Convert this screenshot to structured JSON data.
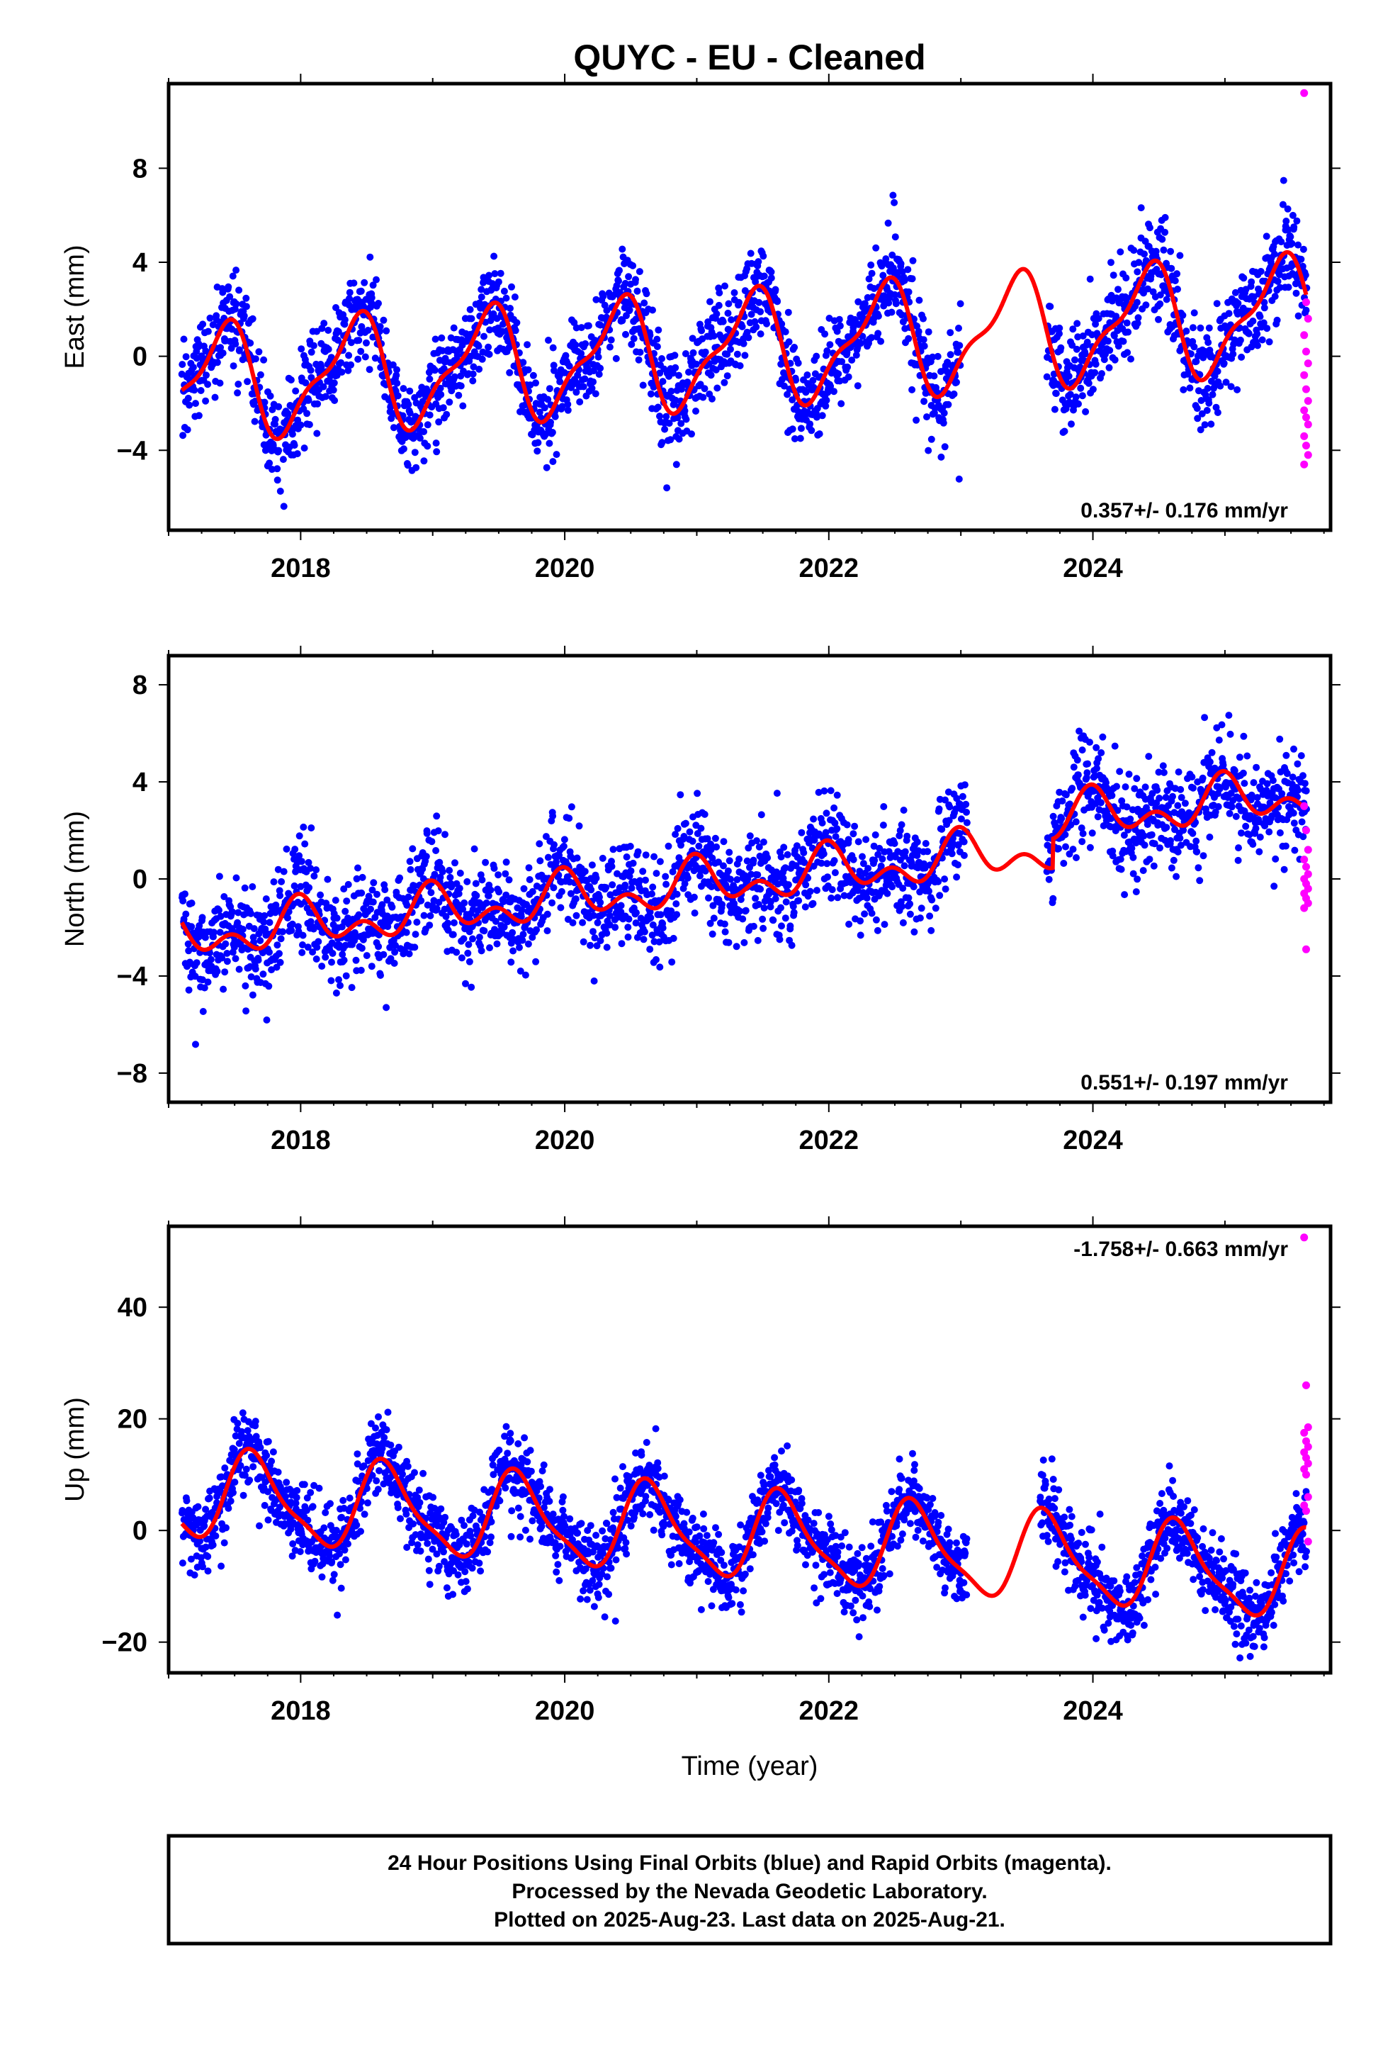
{
  "title": "QUYC  - EU - Cleaned",
  "xlabel": "Time (year)",
  "footer": {
    "lines": [
      "24 Hour Positions Using Final Orbits (blue) and Rapid Orbits (magenta).",
      "Processed by the Nevada Geodetic Laboratory.",
      "Plotted on 2025-Aug-23. Last data on 2025-Aug-21."
    ]
  },
  "colors": {
    "final_orbits": "#0000ff",
    "rapid_orbits": "#ff00ff",
    "model": "#ff0000",
    "frame": "#000000"
  },
  "chart_data": [
    {
      "type": "scatter",
      "ylabel": "East (mm)",
      "rate": "0.357+/- 0.176 mm/yr",
      "rate_position": "bottom-right",
      "xlim": [
        2017.0,
        2025.8
      ],
      "ylim": [
        -7.4,
        11.6
      ],
      "xticks": [
        2018,
        2020,
        2022,
        2024
      ],
      "yticks": [
        -4,
        0,
        4,
        8
      ],
      "gaps": [
        [
          2023.0,
          2023.65
        ]
      ],
      "model": {
        "start": 2017.1,
        "end": 2025.62,
        "offset": -1.2,
        "trend": 0.357,
        "annual_amp": 2.2,
        "annual_peak": 2017.4,
        "semi_amp": 0.8,
        "semi_peak": 2017.52
      },
      "scatter_sd": 1.0,
      "final_points": 2500,
      "rapid": [
        11.2,
        2.3,
        1.6,
        0.9,
        0.2,
        -0.3,
        -0.8,
        -1.4,
        -1.9,
        -2.3,
        -2.6,
        -2.9,
        -3.4,
        -3.8,
        -4.2,
        -4.6
      ],
      "rapid_x": [
        2025.6,
        2025.63
      ]
    },
    {
      "type": "scatter",
      "ylabel": "North (mm)",
      "rate": "0.551+/- 0.197 mm/yr",
      "rate_position": "bottom-right",
      "xlim": [
        2017.0,
        2025.8
      ],
      "ylim": [
        -9.2,
        9.2
      ],
      "xticks": [
        2018,
        2020,
        2022,
        2024
      ],
      "yticks": [
        -8,
        -4,
        0,
        4,
        8
      ],
      "gaps": [
        [
          2023.05,
          2023.65
        ]
      ],
      "model": {
        "start": 2017.1,
        "end": 2025.62,
        "offset": -2.4,
        "trend": 0.551,
        "annual_amp": 0.7,
        "annual_peak": 2018.0,
        "semi_amp": 0.6,
        "semi_peak": 2017.98,
        "step_at": 2023.7,
        "step": 1.2
      },
      "scatter_sd": 1.05,
      "final_points": 2400,
      "rapid": [
        3.0,
        2.0,
        1.2,
        0.8,
        0.5,
        0.2,
        0.0,
        -0.2,
        -0.4,
        -0.6,
        -0.8,
        -1.0,
        -1.2,
        -2.9
      ],
      "rapid_x": [
        2025.6,
        2025.63
      ]
    },
    {
      "type": "scatter",
      "ylabel": "Up (mm)",
      "rate": "-1.758+/- 0.663 mm/yr",
      "rate_position": "top-right",
      "xlim": [
        2017.0,
        2025.8
      ],
      "ylim": [
        -25.5,
        54.5
      ],
      "xticks": [
        2018,
        2020,
        2022,
        2024
      ],
      "yticks": [
        -20,
        0,
        20,
        40
      ],
      "gaps": [
        [
          2023.05,
          2023.6
        ]
      ],
      "model": {
        "start": 2017.1,
        "end": 2025.62,
        "offset": 6.5,
        "trend": -1.758,
        "annual_amp": 7.5,
        "annual_peak": 2017.65,
        "semi_amp": 2.0,
        "semi_peak": 2017.57
      },
      "scatter_sd": 3.5,
      "final_points": 2600,
      "rapid": [
        52.5,
        26.0,
        18.5,
        17.5,
        16.0,
        15.0,
        14.0,
        13.0,
        12.0,
        11.0,
        10.0,
        6.0,
        4.5,
        3.5,
        -2.0
      ],
      "rapid_x": [
        2025.6,
        2025.63
      ]
    }
  ]
}
